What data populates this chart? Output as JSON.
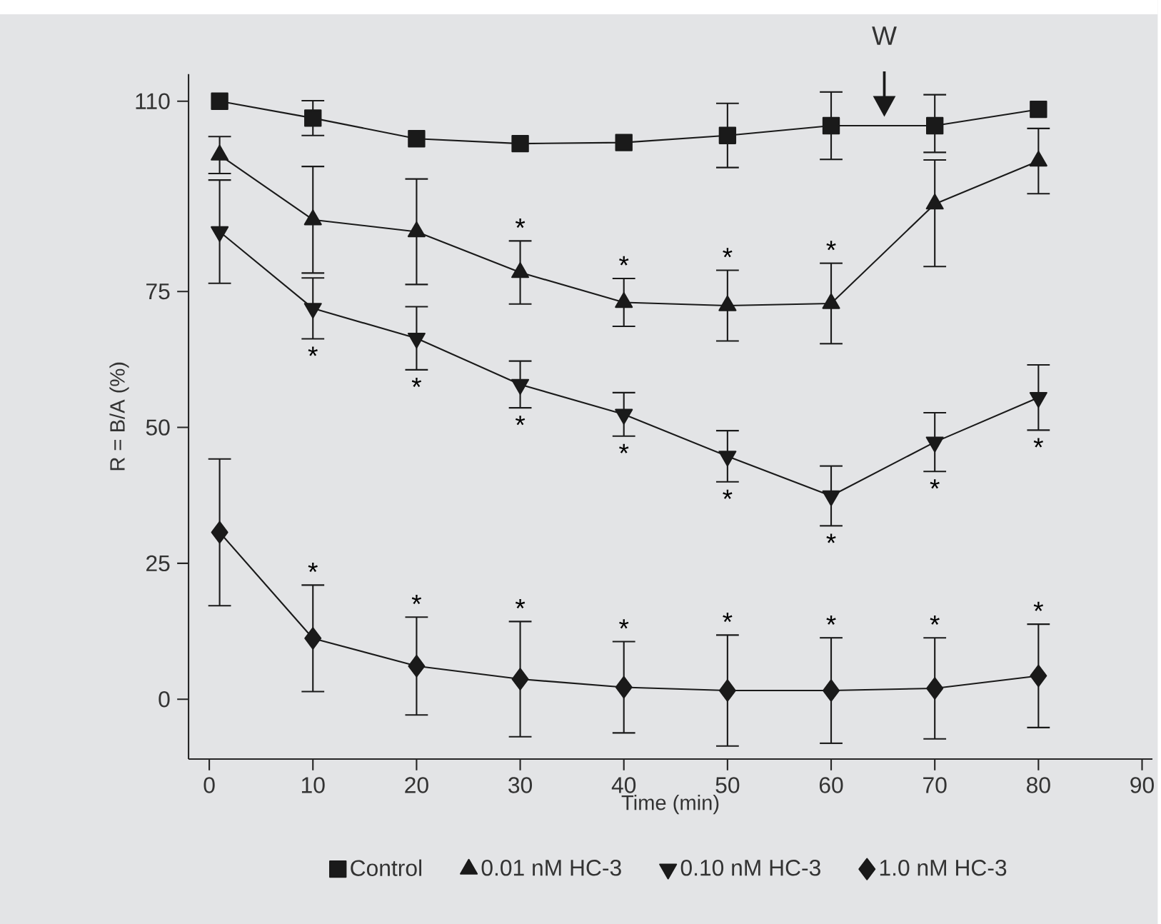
{
  "chart_data": {
    "type": "line",
    "xlabel": "Time (min)",
    "ylabel": "R = B/A (%)",
    "xlim": [
      -2,
      91
    ],
    "xticks": [
      0,
      10,
      20,
      30,
      40,
      50,
      60,
      70,
      80,
      90
    ],
    "ylim": [
      -11,
      115
    ],
    "yticks": [
      0,
      25,
      50,
      75,
      110
    ],
    "x": [
      1,
      10,
      20,
      30,
      40,
      50,
      60,
      70,
      80
    ],
    "legend": "bottom",
    "grid": false,
    "line_style": "solid",
    "series": [
      {
        "name": "Control",
        "color": "#1a1a1a",
        "marker": "square",
        "values": [
          110,
          106.9,
          103.1,
          102.2,
          102.4,
          103.7,
          105.5,
          105.5,
          108.5
        ],
        "errors": [
          null,
          3.2,
          null,
          null,
          null,
          5.9,
          6.2,
          [
            100.6,
            111.2
          ],
          null
        ]
      },
      {
        "name": "0.01 nM HC-3",
        "color": "#1a1a1a",
        "marker": "triangle",
        "values": [
          100.1,
          88.2,
          86,
          78.5,
          73,
          72.4,
          72.8,
          91.1,
          99
        ],
        "errors": [
          3.4,
          9.8,
          9.7,
          5.8,
          4.4,
          6.5,
          7.4,
          [
            79.6,
            99.2
          ],
          6
        ],
        "value_labels": [
          null,
          null,
          null,
          "*",
          "*",
          "*",
          "*",
          null,
          null
        ]
      },
      {
        "name": "0.10 nM HC-3",
        "color": "#1a1a1a",
        "marker": "triangle-down",
        "values": [
          86,
          71.9,
          66.4,
          57.9,
          52.4,
          44.7,
          37.4,
          47.3,
          55.5
        ],
        "errors": [
          9.5,
          5.6,
          5.8,
          4.3,
          4,
          4.7,
          5.5,
          5.4,
          6
        ],
        "value_labels": [
          null,
          "*",
          "*",
          "*",
          "*",
          "*",
          "*",
          "*",
          "*"
        ]
      },
      {
        "name": "1.0 nM HC-3",
        "color": "#1a1a1a",
        "marker": "diamond",
        "values": [
          30.7,
          11.2,
          6.1,
          3.7,
          2.2,
          1.6,
          1.6,
          2,
          4.3
        ],
        "errors": [
          13.5,
          9.8,
          9,
          10.6,
          8.4,
          10.2,
          9.7,
          9.3,
          9.5
        ],
        "value_labels": [
          null,
          "*",
          "*",
          "*",
          "*",
          "*",
          "*",
          "*",
          "*"
        ]
      }
    ],
    "annotations": [
      "W"
    ]
  }
}
